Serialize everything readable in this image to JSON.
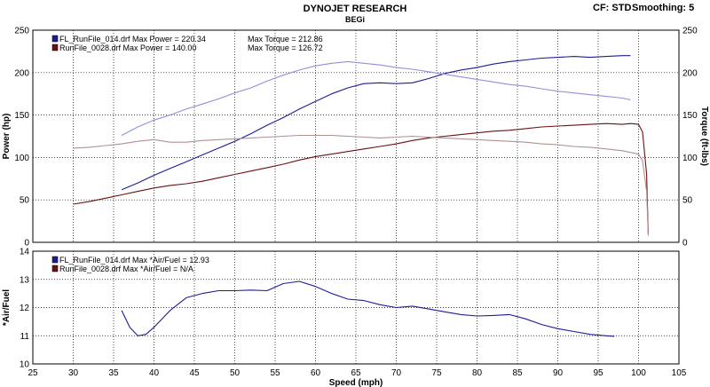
{
  "header": {
    "title": "DYNOJET RESEARCH",
    "subtitle": "BEGi",
    "cf_label": "CF: STD",
    "smoothing_label": "Smoothing: 5"
  },
  "colors": {
    "run1": "#1c1c96",
    "run1_light": "#9090dc",
    "run2": "#6a1010",
    "run2_light": "#b09090",
    "grid": "#000000",
    "frame": "#000000"
  },
  "chart_data": [
    {
      "type": "line",
      "title": "",
      "xlabel": "",
      "ylabel": "Power (hp)",
      "y2label": "Torque (ft-lbs)",
      "xlim": [
        25,
        105
      ],
      "ylim": [
        0,
        250
      ],
      "y2lim": [
        0,
        250
      ],
      "xticks": [
        25,
        30,
        35,
        40,
        45,
        50,
        55,
        60,
        65,
        70,
        75,
        80,
        85,
        90,
        95,
        100,
        105
      ],
      "yticks": [
        0,
        50,
        100,
        150,
        200,
        250
      ],
      "legend": [
        {
          "color_key": "run1",
          "text": "FL_RunFile_014.drf Max Power = 220.34",
          "text2": "Max Torque = 212.86"
        },
        {
          "color_key": "run2",
          "text": "RunFile_0028.drf Max Power = 140.00",
          "text2": "Max Torque = 126.72"
        }
      ],
      "series": [
        {
          "name": "FL_RunFile_014.drf Power",
          "color_key": "run1",
          "x": [
            36,
            38,
            40,
            42,
            44,
            46,
            48,
            50,
            52,
            54,
            56,
            58,
            60,
            62,
            64,
            66,
            68,
            70,
            72,
            74,
            76,
            78,
            80,
            82,
            84,
            86,
            88,
            90,
            92,
            94,
            96,
            98,
            99
          ],
          "y": [
            62,
            70,
            79,
            87,
            95,
            103,
            111,
            119,
            128,
            138,
            147,
            157,
            166,
            175,
            182,
            187,
            188,
            187,
            188,
            193,
            199,
            203,
            206,
            210,
            213,
            215,
            217,
            218,
            219,
            218,
            219,
            220,
            220
          ]
        },
        {
          "name": "FL_RunFile_014.drf Torque",
          "color_key": "run1_light",
          "x": [
            36,
            38,
            40,
            42,
            44,
            46,
            48,
            50,
            52,
            54,
            56,
            58,
            60,
            62,
            64,
            66,
            68,
            70,
            72,
            74,
            76,
            78,
            80,
            82,
            84,
            86,
            88,
            90,
            92,
            94,
            96,
            98,
            99
          ],
          "y": [
            126,
            136,
            144,
            150,
            157,
            163,
            169,
            176,
            182,
            190,
            197,
            203,
            208,
            211,
            213,
            211,
            209,
            206,
            204,
            201,
            198,
            195,
            192,
            189,
            186,
            184,
            181,
            178,
            176,
            174,
            172,
            170,
            168
          ]
        },
        {
          "name": "RunFile_0028.drf Power",
          "color_key": "run2",
          "x": [
            30,
            32,
            34,
            36,
            38,
            40,
            42,
            44,
            46,
            48,
            50,
            52,
            54,
            56,
            58,
            60,
            62,
            64,
            66,
            68,
            70,
            72,
            74,
            76,
            78,
            80,
            82,
            84,
            86,
            88,
            90,
            92,
            94,
            96,
            98,
            99,
            100,
            100.5,
            101,
            101.2
          ],
          "y": [
            45,
            48,
            52,
            56,
            60,
            64,
            67,
            69,
            72,
            76,
            80,
            84,
            88,
            92,
            97,
            101,
            104,
            107,
            110,
            113,
            116,
            120,
            123,
            125,
            127,
            129,
            131,
            132,
            134,
            136,
            137,
            138,
            139,
            140,
            139,
            140,
            139,
            130,
            80,
            10
          ]
        },
        {
          "name": "RunFile_0028.drf Torque",
          "color_key": "run2_light",
          "x": [
            30,
            32,
            34,
            36,
            38,
            40,
            42,
            44,
            46,
            48,
            50,
            52,
            54,
            56,
            58,
            60,
            62,
            64,
            66,
            68,
            70,
            72,
            74,
            76,
            78,
            80,
            82,
            84,
            86,
            88,
            90,
            92,
            94,
            96,
            98,
            99,
            100,
            100.5,
            101,
            101.2
          ],
          "y": [
            111,
            112,
            114,
            116,
            119,
            121,
            118,
            118,
            120,
            121,
            122,
            123,
            124,
            125,
            126,
            126,
            126,
            125,
            124,
            123,
            124,
            125,
            124,
            123,
            122,
            121,
            120,
            119,
            118,
            116,
            115,
            113,
            112,
            110,
            108,
            106,
            104,
            96,
            60,
            8
          ]
        }
      ]
    },
    {
      "type": "line",
      "title": "",
      "xlabel": "Speed (mph)",
      "ylabel": "*Air/Fuel",
      "xlim": [
        25,
        105
      ],
      "ylim": [
        10,
        14
      ],
      "xticks": [
        25,
        30,
        35,
        40,
        45,
        50,
        55,
        60,
        65,
        70,
        75,
        80,
        85,
        90,
        95,
        100,
        105
      ],
      "yticks": [
        10,
        11,
        12,
        13,
        14
      ],
      "legend": [
        {
          "color_key": "run1",
          "text": "FL_RunFile_014.drf Max *Air/Fuel = 12.93"
        },
        {
          "color_key": "run2",
          "text": "RunFile_0028.drf Max *Air/Fuel = N/A"
        }
      ],
      "series": [
        {
          "name": "FL_RunFile_014.drf *Air/Fuel",
          "color_key": "run1",
          "x": [
            36,
            37,
            38,
            39,
            40,
            42,
            44,
            46,
            48,
            50,
            52,
            54,
            56,
            58,
            60,
            62,
            64,
            66,
            68,
            70,
            72,
            74,
            76,
            78,
            80,
            82,
            84,
            86,
            88,
            90,
            92,
            94,
            96,
            97
          ],
          "y": [
            11.9,
            11.3,
            11.0,
            11.05,
            11.3,
            11.9,
            12.35,
            12.5,
            12.6,
            12.6,
            12.62,
            12.6,
            12.85,
            12.93,
            12.75,
            12.5,
            12.3,
            12.25,
            12.1,
            12.0,
            12.05,
            11.95,
            11.85,
            11.75,
            11.7,
            11.72,
            11.75,
            11.6,
            11.4,
            11.25,
            11.15,
            11.05,
            11.0,
            10.98
          ]
        }
      ]
    }
  ]
}
